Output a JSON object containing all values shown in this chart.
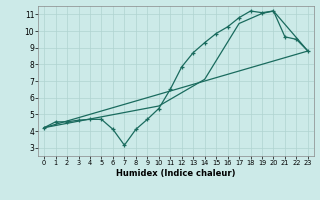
{
  "xlabel": "Humidex (Indice chaleur)",
  "bg_color": "#cceae8",
  "grid_color": "#b0d4d0",
  "line_color": "#1a6b5e",
  "xlim": [
    -0.5,
    23.5
  ],
  "ylim": [
    2.5,
    11.5
  ],
  "xticks": [
    0,
    1,
    2,
    3,
    4,
    5,
    6,
    7,
    8,
    9,
    10,
    11,
    12,
    13,
    14,
    15,
    16,
    17,
    18,
    19,
    20,
    21,
    22,
    23
  ],
  "yticks": [
    3,
    4,
    5,
    6,
    7,
    8,
    9,
    10,
    11
  ],
  "series1_x": [
    0,
    1,
    2,
    3,
    4,
    5,
    6,
    7,
    8,
    9,
    10,
    11,
    12,
    13,
    14,
    15,
    16,
    17,
    18,
    19,
    20,
    21,
    22,
    23
  ],
  "series1_y": [
    4.2,
    4.55,
    4.55,
    4.65,
    4.7,
    4.7,
    4.1,
    3.15,
    4.1,
    4.7,
    5.35,
    6.5,
    7.85,
    8.7,
    9.3,
    9.85,
    10.25,
    10.8,
    11.2,
    11.1,
    11.2,
    9.65,
    9.5,
    8.8
  ],
  "series2_x": [
    0,
    23
  ],
  "series2_y": [
    4.2,
    8.8
  ],
  "series3_x": [
    0,
    5,
    10,
    14,
    17,
    19,
    20,
    23
  ],
  "series3_y": [
    4.2,
    4.85,
    5.5,
    7.1,
    10.45,
    11.05,
    11.2,
    8.8
  ]
}
